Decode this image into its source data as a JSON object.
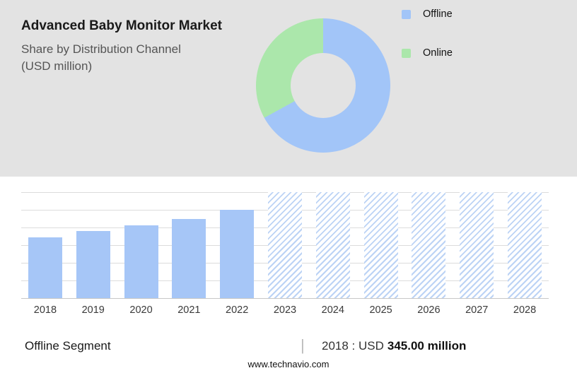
{
  "header": {
    "title": "Advanced Baby Monitor Market",
    "subtitle_line1": "Share by Distribution Channel",
    "subtitle_line2": "(USD million)"
  },
  "colors": {
    "top_background": "#e3e3e3",
    "offline_blue": "#a2c5f8",
    "online_green": "#abe7ab",
    "solid_bar_blue": "#a6c6f7",
    "hatch_stripe_blue": "#bcd3f5"
  },
  "legend": {
    "items": [
      {
        "label": "Offline",
        "color": "#a2c5f8"
      },
      {
        "label": "Online",
        "color": "#abe7ab"
      }
    ]
  },
  "chart_data": [
    {
      "type": "pie",
      "donut": true,
      "title": "Share by Distribution Channel (USD million)",
      "labels": [
        "Offline",
        "Online"
      ],
      "values": [
        67,
        33
      ],
      "colors": [
        "#a2c5f8",
        "#abe7ab"
      ],
      "legend_position": "right"
    },
    {
      "type": "bar",
      "categories": [
        "2018",
        "2019",
        "2020",
        "2021",
        "2022",
        "2023",
        "2024",
        "2025",
        "2026",
        "2027",
        "2028"
      ],
      "series": [
        {
          "name": "Offline segment size (USD million)",
          "values": [
            345,
            380,
            412,
            449,
            500,
            null,
            null,
            null,
            null,
            null,
            null
          ]
        }
      ],
      "forecast_years": [
        "2023",
        "2024",
        "2025",
        "2026",
        "2027",
        "2028"
      ],
      "ylim": [
        0,
        600
      ],
      "grid": true,
      "gridline_count": 7,
      "bar_color": "#a6c6f7",
      "annotation": "2018 : USD 345.00 million"
    }
  ],
  "footer": {
    "segment_label": "Offline Segment",
    "separator": "|",
    "stat_prefix": "2018 : USD",
    "stat_value": "345.00 million",
    "website": "www.technavio.com"
  }
}
